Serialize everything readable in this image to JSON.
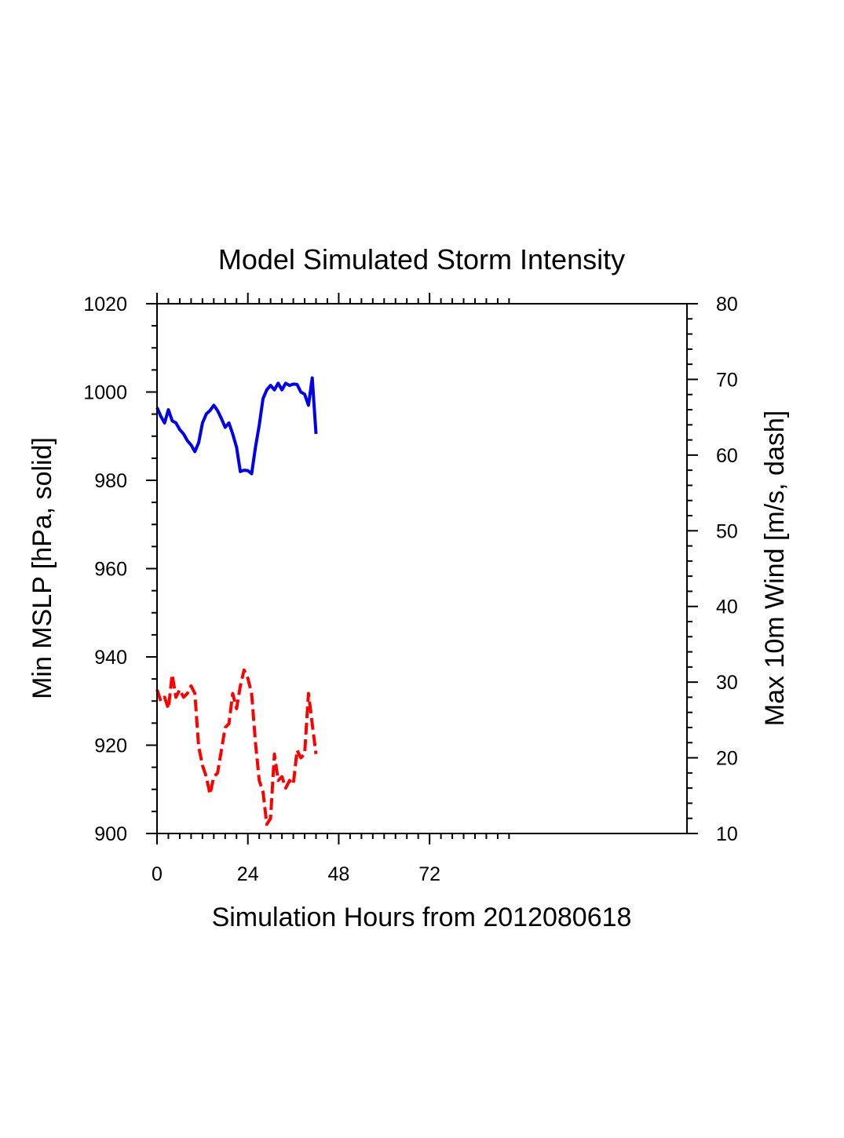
{
  "chart_data": {
    "type": "line",
    "title": "Model Simulated Storm Intensity",
    "xlabel": "Simulation Hours from 2012080618",
    "ylabel_left": "Min MSLP  [hPa, solid]",
    "ylabel_right": "Max 10m Wind  [m/s, dash]",
    "xlim": [
      0,
      140
    ],
    "ylim_left": [
      900,
      1020
    ],
    "ylim_right": [
      10,
      80
    ],
    "xticks": [
      0,
      24,
      48,
      72
    ],
    "yticks_left": [
      900,
      920,
      940,
      960,
      980,
      1000,
      1020
    ],
    "yticks_right": [
      10,
      20,
      30,
      40,
      50,
      60,
      70,
      80
    ],
    "colors": {
      "mslp": "#0000ee",
      "wind": "#ff0000"
    },
    "series": [
      {
        "name": "Min MSLP",
        "axis": "left",
        "style": "solid",
        "x": [
          0,
          1,
          2,
          3,
          4,
          5,
          6,
          7,
          8,
          9,
          10,
          11,
          12,
          13,
          14,
          15,
          16,
          17,
          18,
          19,
          20,
          21,
          22,
          23,
          24,
          25,
          26,
          27,
          28,
          29,
          30,
          31,
          32,
          33,
          34,
          35,
          36,
          37,
          38,
          39,
          40,
          41,
          42
        ],
        "values": [
          996.5,
          994.5,
          993.0,
          996.0,
          993.5,
          993.0,
          991.5,
          990.5,
          989.0,
          988.0,
          986.5,
          988.5,
          993.0,
          995.0,
          995.8,
          997.0,
          995.8,
          994.0,
          992.0,
          993.0,
          990.5,
          987.5,
          982.0,
          982.3,
          982.2,
          981.5,
          987.5,
          992.5,
          998.5,
          1000.5,
          1001.5,
          1000.5,
          1002.0,
          1000.5,
          1002.0,
          1001.5,
          1001.8,
          1001.7,
          1000.0,
          999.5,
          997.0,
          1003.2,
          990.5
        ]
      },
      {
        "name": "Max 10m Wind",
        "axis": "right",
        "style": "dash",
        "x": [
          0,
          1,
          2,
          3,
          4,
          5,
          6,
          7,
          8,
          9,
          10,
          11,
          12,
          13,
          14,
          15,
          16,
          17,
          18,
          19,
          20,
          21,
          22,
          23,
          24,
          25,
          26,
          27,
          28,
          29,
          30,
          31,
          32,
          33,
          34,
          35,
          36,
          37,
          38,
          39,
          40,
          41,
          42
        ],
        "values": [
          29.0,
          27.5,
          28.0,
          26.5,
          31.0,
          28.0,
          29.0,
          28.0,
          28.5,
          29.5,
          28.5,
          21.5,
          19.0,
          17.5,
          15.2,
          17.5,
          18.0,
          21.0,
          24.0,
          24.5,
          28.5,
          26.5,
          29.5,
          31.6,
          30.5,
          28.5,
          22.0,
          17.0,
          15.5,
          11.2,
          12.0,
          20.5,
          17.0,
          17.5,
          16.0,
          17.0,
          16.5,
          21.0,
          20.0,
          20.5,
          28.5,
          24.5,
          20.5
        ]
      }
    ]
  }
}
